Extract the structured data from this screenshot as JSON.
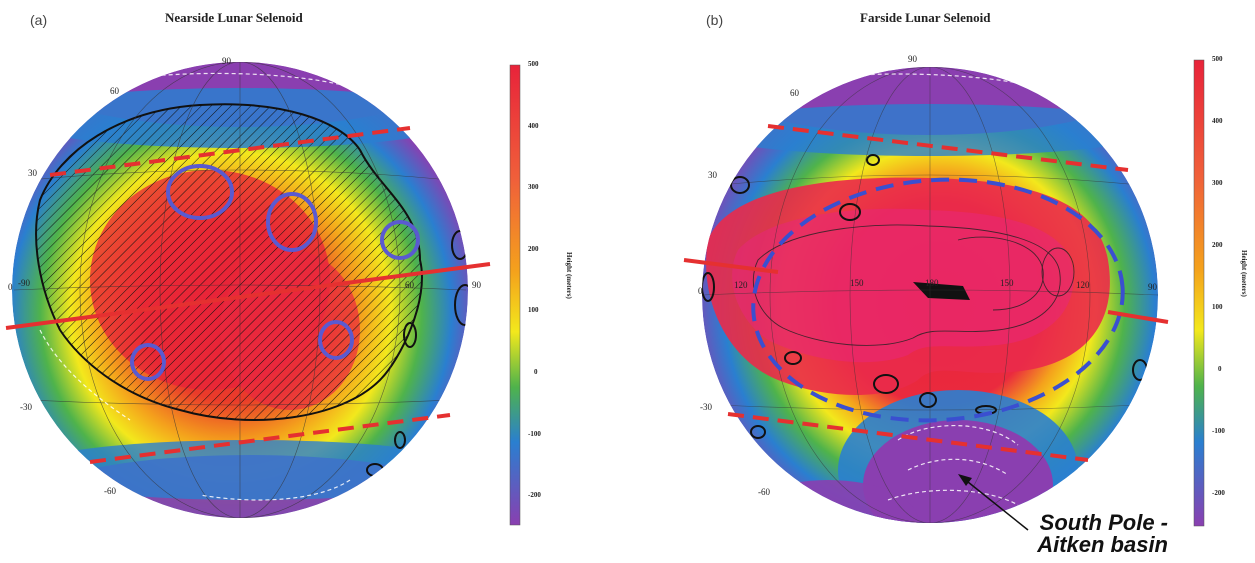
{
  "panel_a": {
    "letter": "(a)",
    "title": "Nearside Lunar Selenoid",
    "lat_labels": [
      "90",
      "60",
      "30",
      "0",
      "-30",
      "-60"
    ],
    "lon_labels": [
      "-90",
      "90",
      "60"
    ],
    "colorbar_ticks": [
      "500",
      "400",
      "300",
      "200",
      "100",
      "0",
      "-100",
      "-200"
    ],
    "colorbar_label": "Height (meters)"
  },
  "panel_b": {
    "letter": "(b)",
    "title": "Farside Lunar Selenoid",
    "lat_labels": [
      "90",
      "60",
      "30",
      "0",
      "-30",
      "-60"
    ],
    "lon_labels": [
      "120",
      "150",
      "180",
      "150",
      "120",
      "90"
    ],
    "colorbar_ticks": [
      "500",
      "400",
      "300",
      "200",
      "100",
      "0",
      "-100",
      "-200"
    ],
    "colorbar_label": "Height (meters)",
    "annotation_line1": "South Pole -",
    "annotation_line2": "Aitken basin"
  },
  "colors": {
    "high": "#e8233a",
    "mid_high": "#f4a21c",
    "mid": "#f3e81c",
    "mid_low": "#4fb34b",
    "low": "#2a7fd0",
    "lowest": "#8a3fb0",
    "dashed_red": "#e53030",
    "dashed_blue": "#3a4fd0",
    "ring_blue": "#5a5ad0"
  }
}
